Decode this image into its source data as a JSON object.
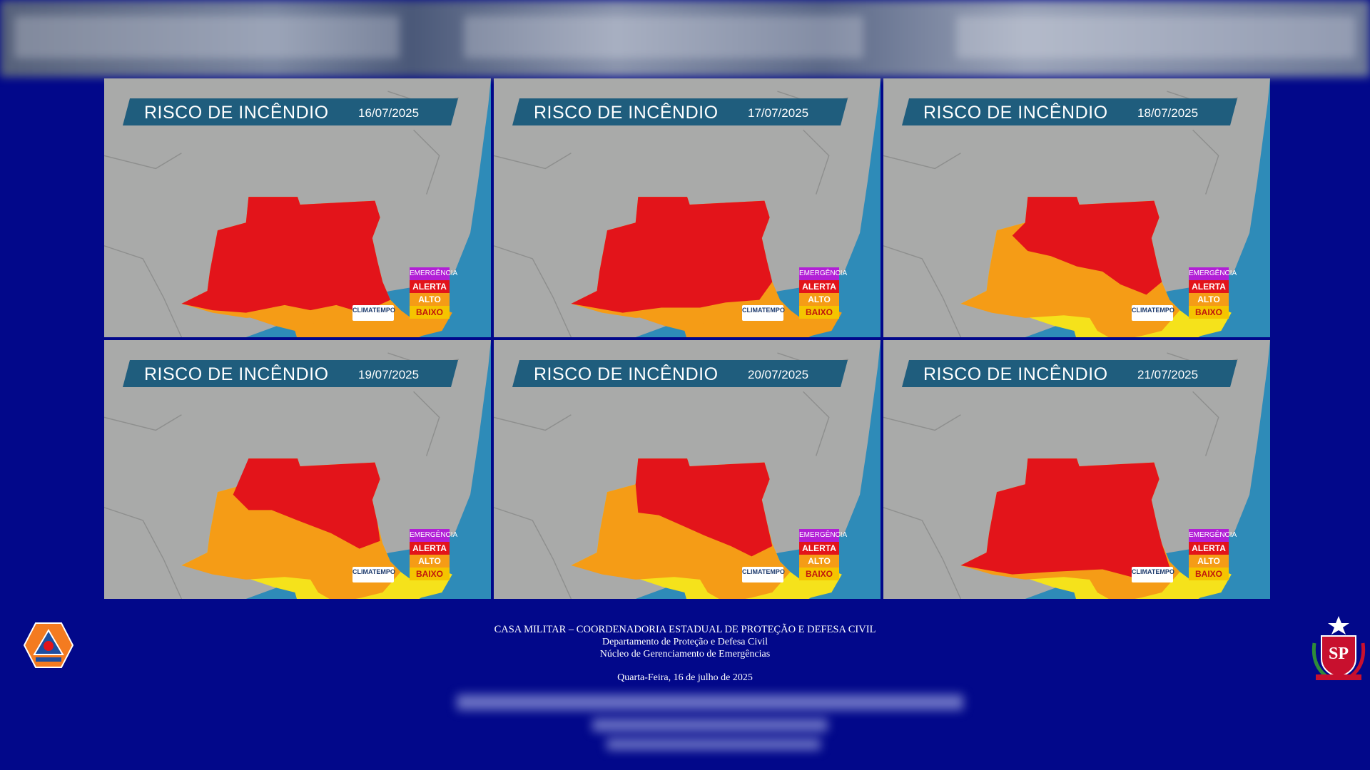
{
  "maps": [
    {
      "title": "RISCO DE INCÊNDIO",
      "date": "16/07/2025"
    },
    {
      "title": "RISCO DE INCÊNDIO",
      "date": "17/07/2025"
    },
    {
      "title": "RISCO DE INCÊNDIO",
      "date": "18/07/2025"
    },
    {
      "title": "RISCO DE INCÊNDIO",
      "date": "19/07/2025"
    },
    {
      "title": "RISCO DE INCÊNDIO",
      "date": "20/07/2025"
    },
    {
      "title": "RISCO DE INCÊNDIO",
      "date": "21/07/2025"
    }
  ],
  "legend": {
    "emergencia": "EMERGÊNCIA",
    "alerta": "ALERTA",
    "alto": "ALTO",
    "baixo": "BAIXO"
  },
  "logo": {
    "text": "CLIMATEMPO"
  },
  "colors": {
    "background": "#02088a",
    "ocean": "#2e8bb8",
    "land": "#a9aaa9",
    "banner": "#1f5d7d",
    "emergencia": "#b21fd6",
    "alerta": "#e3141a",
    "alto": "#f59c16",
    "baixo": "#f5e21b"
  },
  "footer": {
    "line1": "CASA MILITAR – COORDENADORIA ESTADUAL DE PROTEÇÃO E DEFESA CIVIL",
    "line2": "Departamento de Proteção e Defesa Civil",
    "line3": "Núcleo de Gerenciamento de Emergências",
    "date": "Quarta-Feira, 16 de julho de 2025"
  },
  "icons": {
    "left": "defesa-civil-emblem-icon",
    "right": "sao-paulo-coat-of-arms-icon"
  }
}
